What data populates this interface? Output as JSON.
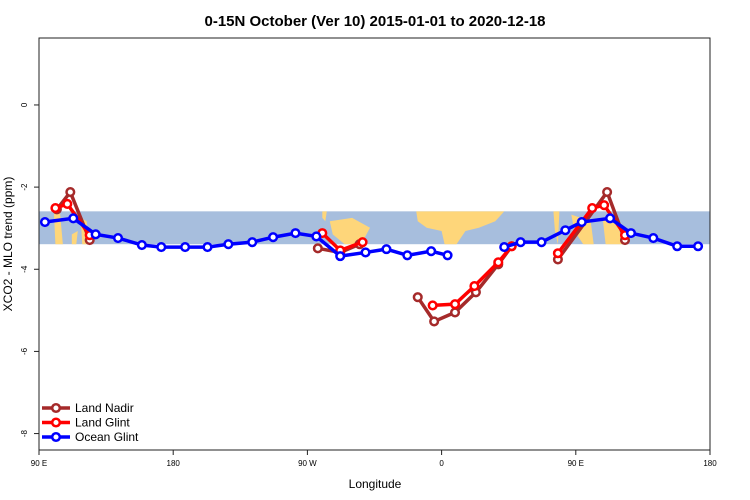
{
  "chart_data": {
    "type": "line",
    "title": "0-15N October (Ver 10)   2015-01-01 to 2020-12-18",
    "xlabel": "Longitude",
    "ylabel": "XCO2 - MLO trend (ppm)",
    "xlim": [
      90,
      540
    ],
    "ylim": [
      -8.4,
      1.63
    ],
    "x_units_note": "continuous degrees east starting at 90E",
    "x_ticks": [
      {
        "v": 90,
        "label": "90 E"
      },
      {
        "v": 180,
        "label": "180"
      },
      {
        "v": 270,
        "label": "90 W"
      },
      {
        "v": 360,
        "label": "0"
      },
      {
        "v": 450,
        "label": "90 E"
      },
      {
        "v": 540,
        "label": "180"
      }
    ],
    "y_ticks": [
      {
        "v": 0,
        "label": "0"
      },
      {
        "v": -2,
        "label": "-2"
      },
      {
        "v": -4,
        "label": "-4"
      },
      {
        "v": -6,
        "label": "-6"
      },
      {
        "v": -8,
        "label": "-8"
      }
    ],
    "map_band_ppm": [
      -2.59,
      -3.39
    ],
    "legend_position": "bottom-left",
    "series": [
      {
        "name": "Land Nadir",
        "color": "#a52a2a",
        "points": [
          [
            102,
            -2.54
          ],
          [
            111,
            -2.12
          ],
          [
            124,
            -3.29
          ],
          null,
          [
            277,
            -3.49
          ],
          [
            292,
            -3.59
          ],
          [
            305,
            -3.39
          ],
          null,
          [
            344,
            -4.68
          ],
          [
            355,
            -5.27
          ],
          [
            369,
            -5.05
          ],
          [
            383,
            -4.56
          ],
          [
            398,
            -3.88
          ],
          [
            407,
            -3.44
          ],
          null,
          [
            438,
            -3.76
          ],
          [
            471,
            -2.12
          ],
          [
            483,
            -3.29
          ]
        ]
      },
      {
        "name": "Land Glint",
        "color": "#ff0000",
        "points": [
          [
            101,
            -2.51
          ],
          [
            109,
            -2.41
          ],
          [
            124,
            -3.17
          ],
          null,
          [
            280,
            -3.12
          ],
          [
            292,
            -3.54
          ],
          [
            307,
            -3.34
          ],
          null,
          [
            354,
            -4.88
          ],
          [
            369,
            -4.85
          ],
          [
            382,
            -4.41
          ],
          [
            398,
            -3.83
          ],
          [
            407,
            -3.44
          ],
          null,
          [
            438,
            -3.61
          ],
          [
            461,
            -2.51
          ],
          [
            469,
            -2.44
          ],
          [
            483,
            -3.17
          ]
        ]
      },
      {
        "name": "Ocean Glint",
        "color": "#0000ff",
        "points": [
          [
            94,
            -2.85
          ],
          [
            113,
            -2.76
          ],
          [
            128,
            -3.15
          ],
          [
            143,
            -3.24
          ],
          [
            159,
            -3.41
          ],
          [
            172,
            -3.46
          ],
          [
            188,
            -3.46
          ],
          [
            203,
            -3.46
          ],
          [
            217,
            -3.39
          ],
          [
            233,
            -3.34
          ],
          [
            247,
            -3.22
          ],
          [
            262,
            -3.12
          ],
          [
            276,
            -3.2
          ],
          [
            292,
            -3.68
          ],
          [
            309,
            -3.59
          ],
          [
            323,
            -3.51
          ],
          [
            337,
            -3.66
          ],
          [
            353,
            -3.56
          ],
          [
            364,
            -3.66
          ],
          null,
          [
            402,
            -3.46
          ],
          [
            413,
            -3.34
          ],
          [
            427,
            -3.34
          ],
          [
            443,
            -3.05
          ],
          [
            454,
            -2.85
          ],
          [
            473,
            -2.76
          ],
          [
            487,
            -3.12
          ],
          [
            502,
            -3.24
          ],
          [
            518,
            -3.44
          ],
          [
            532,
            -3.44
          ]
        ]
      }
    ]
  }
}
